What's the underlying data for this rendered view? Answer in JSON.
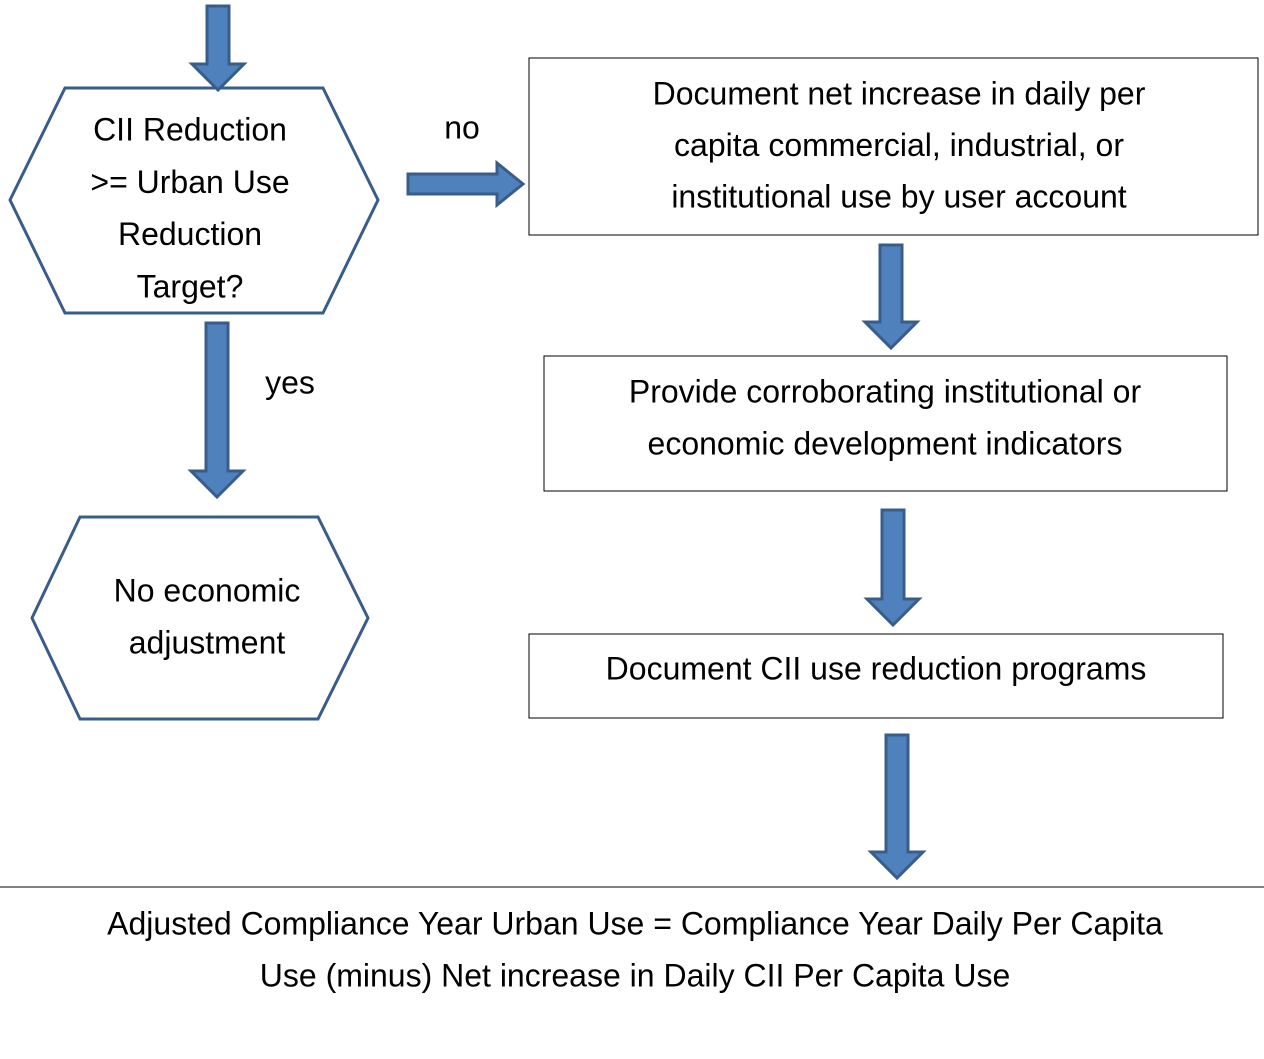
{
  "nodes": [
    {
      "lines": [
        "CII Reduction",
        ">= Urban Use",
        "Reduction",
        "Target?"
      ]
    },
    {
      "lines": [
        "Document net increase in daily per",
        "capita commercial, industrial, or",
        "institutional use by user account"
      ]
    },
    {
      "lines": [
        "Provide corroborating institutional or",
        "economic development indicators"
      ]
    },
    {
      "lines": [
        "Document CII use reduction programs"
      ]
    },
    {
      "lines": [
        "No economic",
        "adjustment"
      ]
    },
    {
      "lines": [
        "Adjusted Compliance Year Urban Use = Compliance Year Daily Per Capita",
        "Use (minus) Net increase in Daily CII Per Capita Use"
      ]
    }
  ],
  "edges": [
    {
      "label": "no"
    },
    {
      "label": "yes"
    }
  ]
}
